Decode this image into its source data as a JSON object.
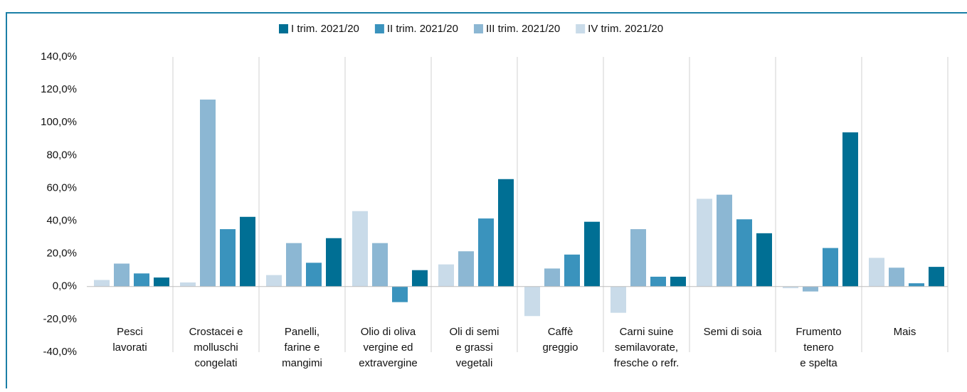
{
  "chart_data": {
    "type": "bar",
    "categories": [
      [
        "Pesci",
        "lavorati"
      ],
      [
        "Crostacei e",
        "molluschi",
        "congelati"
      ],
      [
        "Panelli,",
        "farine e",
        "mangimi"
      ],
      [
        "Olio di oliva",
        "vergine ed",
        "extravergine"
      ],
      [
        "Oli di semi",
        "e grassi",
        "vegetali"
      ],
      [
        "Caffè",
        "greggio"
      ],
      [
        "Carni suine",
        "semilavorate,",
        "fresche o refr."
      ],
      [
        "Semi di soia"
      ],
      [
        "Frumento",
        "tenero",
        "e spelta"
      ],
      [
        "Mais"
      ]
    ],
    "series": [
      {
        "name": "I trim. 2021/20",
        "color": "#006f94",
        "values": [
          5.5,
          42.5,
          29.5,
          10,
          65.5,
          39.5,
          6,
          32.5,
          94,
          12
        ]
      },
      {
        "name": "II trim. 2021/20",
        "color": "#3a93bd",
        "values": [
          8,
          35,
          14.5,
          -9.5,
          41.5,
          19.5,
          6,
          41,
          23.5,
          2
        ]
      },
      {
        "name": "III trim. 2021/20",
        "color": "#8cb7d3",
        "values": [
          14,
          114,
          26.5,
          26.5,
          21.5,
          11,
          35,
          56,
          -3,
          11.5
        ]
      },
      {
        "name": "IV trim. 2021/20",
        "color": "#c9dbe9",
        "values": [
          4,
          2.5,
          7,
          46,
          13.5,
          -18,
          -16,
          53.5,
          -1,
          17.5
        ]
      }
    ],
    "ylim": [
      -40,
      140
    ],
    "yticks": [
      {
        "value": -40,
        "label": "-40,0%"
      },
      {
        "value": -20,
        "label": "-20,0%"
      },
      {
        "value": 0,
        "label": "0,0%"
      },
      {
        "value": 20,
        "label": "20,0%"
      },
      {
        "value": 40,
        "label": "40,0%"
      },
      {
        "value": 60,
        "label": "60,0%"
      },
      {
        "value": 80,
        "label": "80,0%"
      },
      {
        "value": 100,
        "label": "100,0%"
      },
      {
        "value": 120,
        "label": "120,0%"
      },
      {
        "value": 140,
        "label": "140,0%"
      }
    ],
    "legend": "top"
  }
}
